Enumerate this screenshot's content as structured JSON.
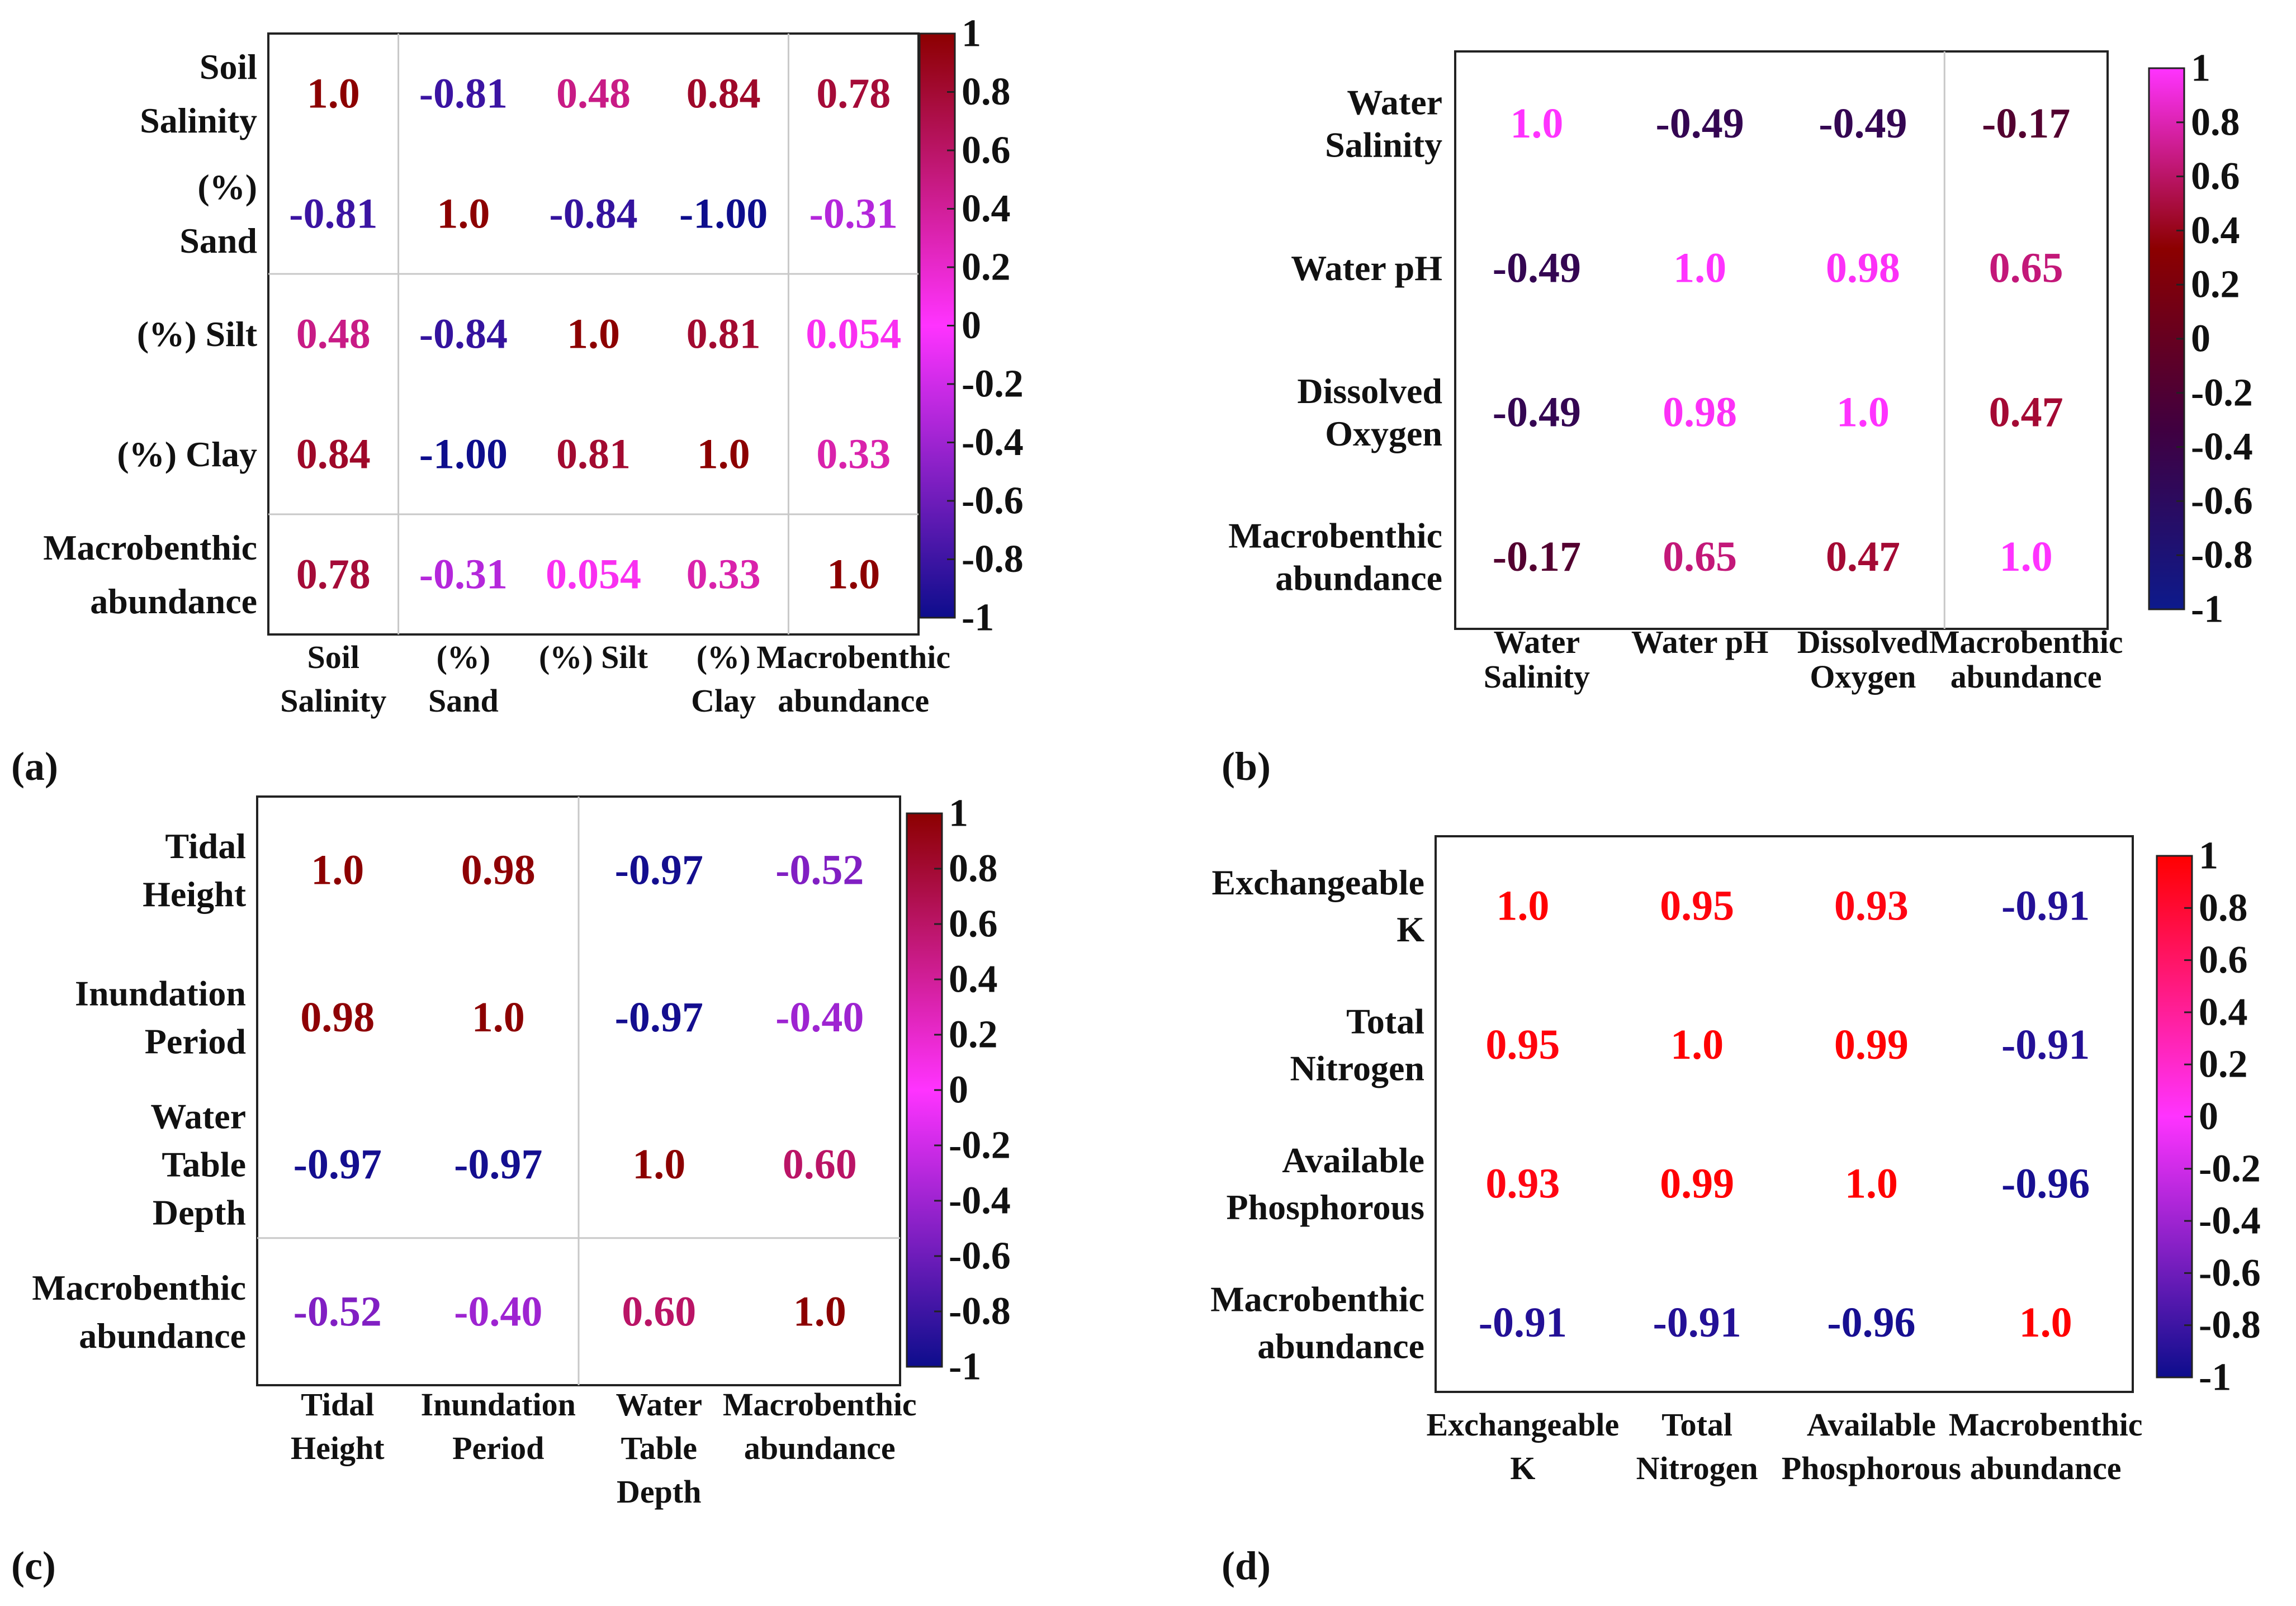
{
  "chart_data": [
    {
      "type": "heatmap",
      "panel_label": "(a)",
      "row_labels": [
        [
          "Soil",
          "Salinity"
        ],
        [
          "(%)",
          "Sand"
        ],
        [
          "(%) Silt"
        ],
        [
          "(%) Clay"
        ],
        [
          "Macrobenthic",
          "abundance"
        ]
      ],
      "col_labels": [
        [
          "Soil",
          "Salinity"
        ],
        [
          "(%)",
          "Sand"
        ],
        [
          "(%) Silt"
        ],
        [
          "(%)",
          "Clay"
        ],
        [
          "Macrobenthic",
          "abundance"
        ]
      ],
      "values": [
        [
          "1.0",
          "-0.81",
          "0.48",
          "0.84",
          "0.78"
        ],
        [
          "-0.81",
          "1.0",
          "-0.84",
          "-1.00",
          "-0.31"
        ],
        [
          "0.48",
          "-0.84",
          "1.0",
          "0.81",
          "0.054"
        ],
        [
          "0.84",
          "-1.00",
          "0.81",
          "1.0",
          "0.33"
        ],
        [
          "0.78",
          "-0.31",
          "0.054",
          "0.33",
          "1.0"
        ]
      ],
      "colorbar": {
        "range": [
          -1,
          1
        ],
        "tick_labels": [
          "1",
          "0.8",
          "0.6",
          "0.4",
          "0.2",
          "0",
          "-0.2",
          "-0.4",
          "-0.6",
          "-0.8",
          "-1"
        ],
        "colormap": [
          "#0d0d8c",
          "#ff33ff",
          "#8c0000"
        ]
      }
    },
    {
      "type": "heatmap",
      "panel_label": "(b)",
      "row_labels": [
        [
          "Water",
          "Salinity"
        ],
        [
          "Water pH"
        ],
        [
          "Dissolved",
          "Oxygen"
        ],
        [
          "Macrobenthic",
          "abundance"
        ]
      ],
      "col_labels": [
        [
          "Water",
          "Salinity"
        ],
        [
          "Water pH"
        ],
        [
          "Dissolved",
          "Oxygen"
        ],
        [
          "Macrobenthic",
          "abundance"
        ]
      ],
      "values": [
        [
          "1.0",
          "-0.49",
          "-0.49",
          "-0.17"
        ],
        [
          "-0.49",
          "1.0",
          "0.98",
          "0.65"
        ],
        [
          "-0.49",
          "0.98",
          "1.0",
          "0.47"
        ],
        [
          "-0.17",
          "0.65",
          "0.47",
          "1.0"
        ]
      ],
      "colorbar": {
        "range": [
          -1,
          1
        ],
        "tick_labels": [
          "1",
          "0.8",
          "0.6",
          "0.4",
          "0.2",
          "0",
          "-0.2",
          "-0.4",
          "-0.6",
          "-0.8",
          "-1"
        ],
        "colormap": [
          "#0d1a8c",
          "#400040",
          "#8c0000",
          "#ff33ff"
        ]
      }
    },
    {
      "type": "heatmap",
      "panel_label": "(c)",
      "row_labels": [
        [
          "Tidal",
          "Height"
        ],
        [
          "Inundation",
          "Period"
        ],
        [
          "Water",
          "Table",
          "Depth"
        ],
        [
          "Macrobenthic",
          "abundance"
        ]
      ],
      "col_labels": [
        [
          "Tidal",
          "Height"
        ],
        [
          "Inundation",
          "Period"
        ],
        [
          "Water",
          "Table",
          "Depth"
        ],
        [
          "Macrobenthic",
          "abundance"
        ]
      ],
      "values": [
        [
          "1.0",
          "0.98",
          "-0.97",
          "-0.52"
        ],
        [
          "0.98",
          "1.0",
          "-0.97",
          "-0.40"
        ],
        [
          "-0.97",
          "-0.97",
          "1.0",
          "0.60"
        ],
        [
          "-0.52",
          "-0.40",
          "0.60",
          "1.0"
        ]
      ],
      "colorbar": {
        "range": [
          -1,
          1
        ],
        "tick_labels": [
          "1",
          "0.8",
          "0.6",
          "0.4",
          "0.2",
          "0",
          "-0.2",
          "-0.4",
          "-0.6",
          "-0.8",
          "-1"
        ],
        "colormap": [
          "#0d0d8c",
          "#ff33ff",
          "#8c0000"
        ]
      }
    },
    {
      "type": "heatmap",
      "panel_label": "(d)",
      "row_labels": [
        [
          "Exchangeable",
          "K"
        ],
        [
          "Total",
          "Nitrogen"
        ],
        [
          "Available",
          "Phosphorous"
        ],
        [
          "Macrobenthic",
          "abundance"
        ]
      ],
      "col_labels": [
        [
          "Exchangeable",
          "K"
        ],
        [
          "Total",
          "Nitrogen"
        ],
        [
          "Available",
          "Phosphorous"
        ],
        [
          "Macrobenthic",
          "abundance"
        ]
      ],
      "values": [
        [
          "1.0",
          "0.95",
          "0.93",
          "-0.91"
        ],
        [
          "0.95",
          "1.0",
          "0.99",
          "-0.91"
        ],
        [
          "0.93",
          "0.99",
          "1.0",
          "-0.96"
        ],
        [
          "-0.91",
          "-0.91",
          "-0.96",
          "1.0"
        ]
      ],
      "colorbar": {
        "range": [
          -1,
          1
        ],
        "tick_labels": [
          "1",
          "0.8",
          "0.6",
          "0.4",
          "0.2",
          "0",
          "-0.2",
          "-0.4",
          "-0.6",
          "-0.8",
          "-1"
        ],
        "colormap": [
          "#0d0d8c",
          "#ff33ff",
          "#ff0000"
        ]
      }
    }
  ]
}
